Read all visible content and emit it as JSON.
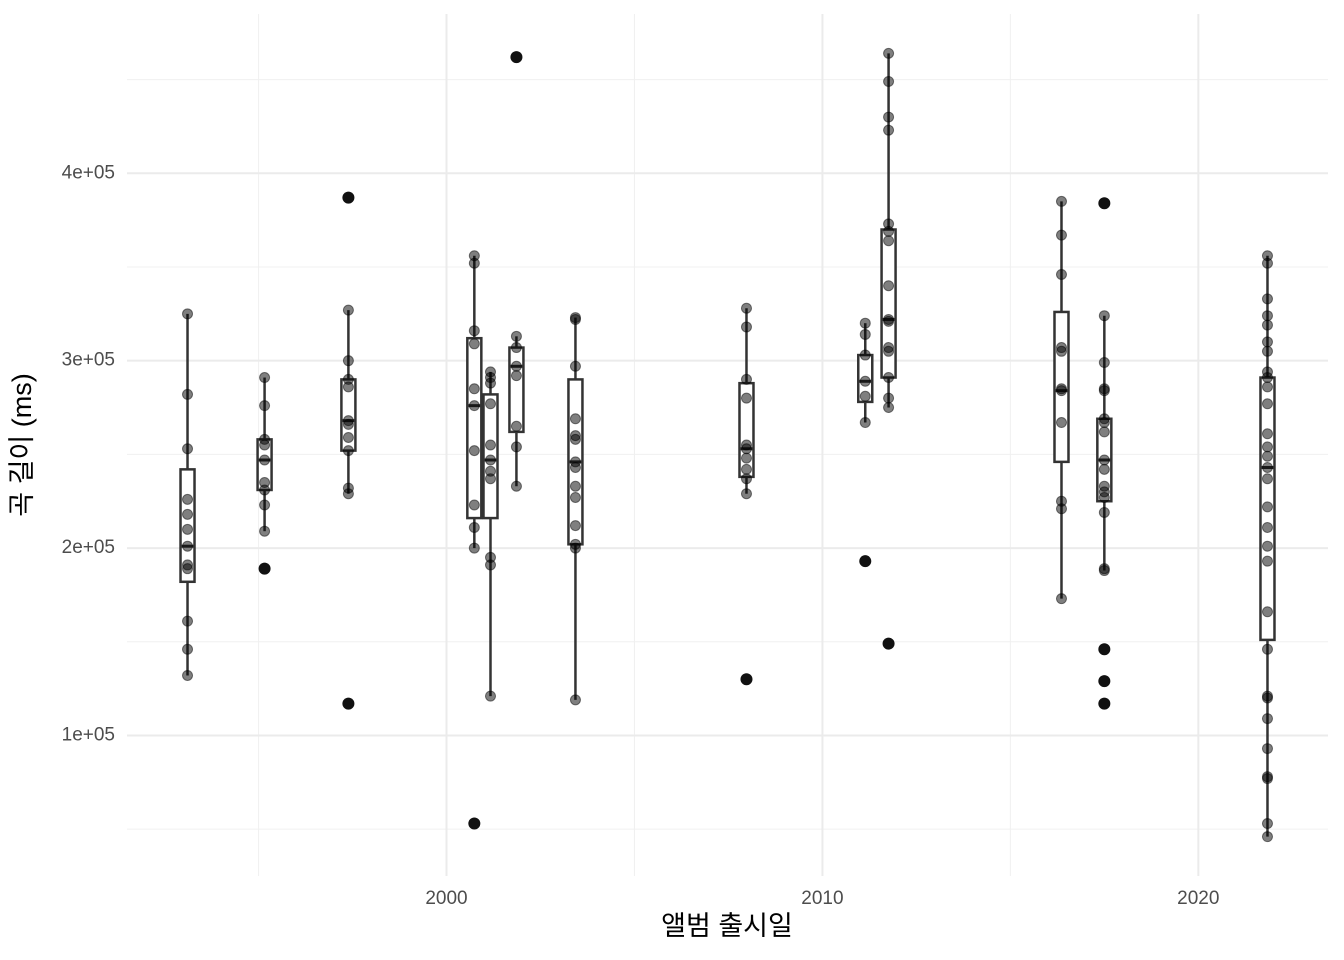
{
  "chart_data": {
    "type": "boxplot",
    "x_label": "앨범 출시일",
    "y_label": "곡 길이 (ms)",
    "xlim": [
      1991.5,
      2023.45
    ],
    "xticks": [
      2000,
      2010,
      2020
    ],
    "ylim": [
      25000,
      485000
    ],
    "yticks": [
      {
        "value": 100000,
        "label": "1e+05"
      },
      {
        "value": 200000,
        "label": "2e+05"
      },
      {
        "value": 300000,
        "label": "3e+05"
      },
      {
        "value": 400000,
        "label": "4e+05"
      }
    ],
    "grid": true,
    "box_color": "#333333",
    "point_color": "#000000",
    "groups": [
      {
        "x": 1993.11,
        "whisker_low": 132000,
        "q1": 182000,
        "median": 201000,
        "q3": 242000,
        "whisker_high": 325000,
        "points": [
          325000,
          282000,
          253000,
          226000,
          218000,
          210000,
          201000,
          191000,
          189000,
          161000,
          146000,
          132000
        ],
        "outliers": []
      },
      {
        "x": 1995.16,
        "whisker_low": 209000,
        "q1": 231000,
        "median": 247000,
        "q3": 258000,
        "whisker_high": 291000,
        "points": [
          291000,
          276000,
          258000,
          255000,
          247000,
          235000,
          231000,
          223000,
          209000
        ],
        "outliers": [
          189000
        ]
      },
      {
        "x": 1997.39,
        "whisker_low": 229000,
        "q1": 252000,
        "median": 268000,
        "q3": 290000,
        "whisker_high": 327000,
        "points": [
          327000,
          300000,
          290000,
          286000,
          268000,
          266000,
          259000,
          252000,
          232000,
          229000
        ],
        "outliers": [
          387000,
          117000
        ]
      },
      {
        "x": 2000.74,
        "whisker_low": 200000,
        "q1": 216000,
        "median": 276000,
        "q3": 312000,
        "whisker_high": 356000,
        "points": [
          356000,
          352000,
          316000,
          309000,
          285000,
          276000,
          252000,
          223000,
          211000,
          200000
        ],
        "outliers": [
          53000
        ]
      },
      {
        "x": 2001.17,
        "whisker_low": 121000,
        "q1": 216000,
        "median": 247000,
        "q3": 282000,
        "whisker_high": 294000,
        "points": [
          294000,
          291000,
          288000,
          277000,
          255000,
          247000,
          241000,
          237000,
          195000,
          191000,
          121000
        ],
        "outliers": []
      },
      {
        "x": 2001.86,
        "whisker_low": 233000,
        "q1": 262000,
        "median": 297000,
        "q3": 307000,
        "whisker_high": 313000,
        "points": [
          313000,
          307000,
          297000,
          292000,
          265000,
          254000,
          233000
        ],
        "outliers": [
          462000
        ]
      },
      {
        "x": 2003.43,
        "whisker_low": 119000,
        "q1": 202000,
        "median": 246000,
        "q3": 290000,
        "whisker_high": 323000,
        "points": [
          323000,
          322000,
          297000,
          269000,
          260000,
          258000,
          246000,
          243000,
          233000,
          227000,
          212000,
          202000,
          200000,
          119000
        ],
        "outliers": []
      },
      {
        "x": 2007.98,
        "whisker_low": 229000,
        "q1": 238000,
        "median": 253000,
        "q3": 288000,
        "whisker_high": 328000,
        "points": [
          328000,
          318000,
          290000,
          280000,
          255000,
          253000,
          248000,
          242000,
          237000,
          229000
        ],
        "outliers": [
          130000
        ]
      },
      {
        "x": 2011.14,
        "whisker_low": 267000,
        "q1": 278000,
        "median": 289000,
        "q3": 303000,
        "whisker_high": 320000,
        "points": [
          320000,
          314000,
          303000,
          289000,
          281000,
          267000
        ],
        "outliers": [
          193000
        ]
      },
      {
        "x": 2011.76,
        "whisker_low": 275000,
        "q1": 291000,
        "median": 322000,
        "q3": 370000,
        "whisker_high": 464000,
        "points": [
          464000,
          449000,
          430000,
          423000,
          373000,
          369000,
          364000,
          340000,
          322000,
          321000,
          307000,
          305000,
          291000,
          280000,
          275000
        ],
        "outliers": [
          149000
        ]
      },
      {
        "x": 2016.36,
        "whisker_low": 173000,
        "q1": 246000,
        "median": 284000,
        "q3": 326000,
        "whisker_high": 385000,
        "points": [
          385000,
          367000,
          346000,
          307000,
          305000,
          285000,
          284000,
          267000,
          225000,
          221000,
          173000
        ],
        "outliers": []
      },
      {
        "x": 2017.5,
        "whisker_low": 188000,
        "q1": 225000,
        "median": 247000,
        "q3": 269000,
        "whisker_high": 324000,
        "points": [
          324000,
          299000,
          285000,
          284000,
          269000,
          267000,
          262000,
          247000,
          242000,
          233000,
          230000,
          227000,
          219000,
          189000,
          188000
        ],
        "outliers": [
          384000,
          146000,
          129000,
          117000
        ]
      },
      {
        "x": 2021.84,
        "whisker_low": 46000,
        "q1": 151000,
        "median": 243000,
        "q3": 291000,
        "whisker_high": 356000,
        "points": [
          356000,
          352000,
          333000,
          324000,
          319000,
          310000,
          305000,
          294000,
          291000,
          286000,
          277000,
          261000,
          254000,
          249000,
          243000,
          237000,
          222000,
          211000,
          201000,
          193000,
          166000,
          146000,
          121000,
          120000,
          109000,
          93000,
          78000,
          77000,
          53000,
          46000
        ],
        "outliers": []
      }
    ]
  }
}
